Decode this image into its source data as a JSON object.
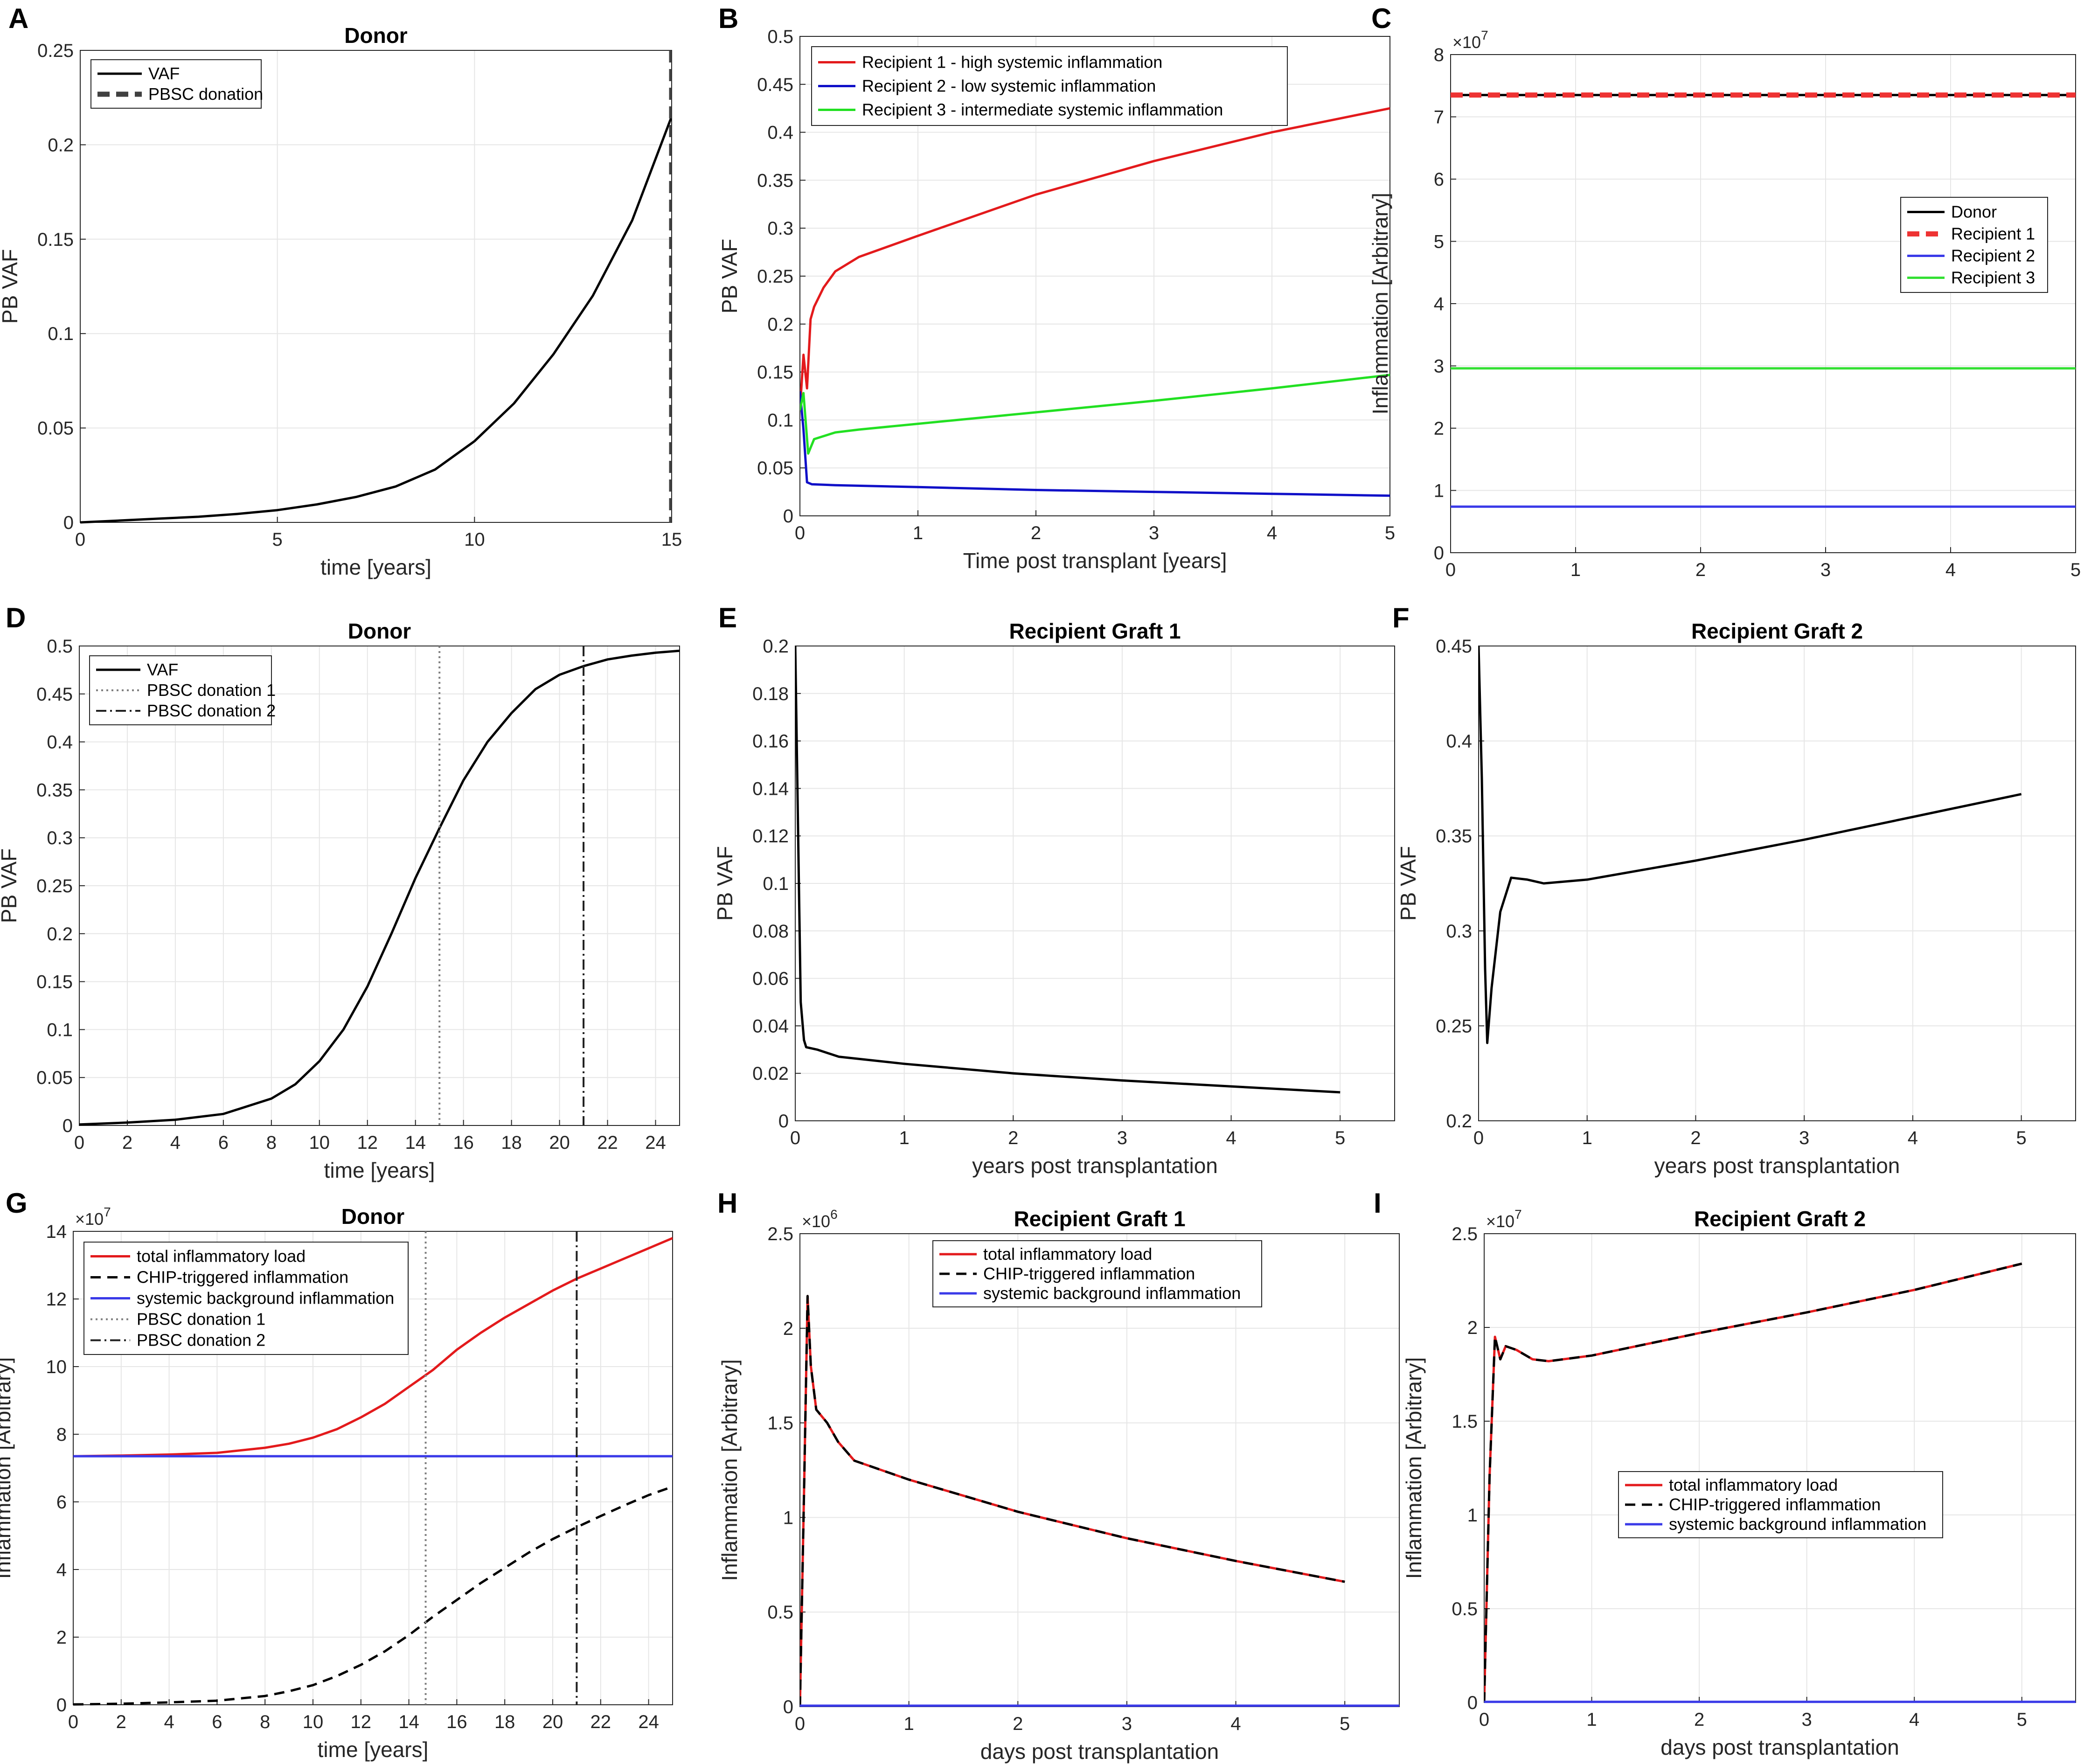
{
  "figure": {
    "panel_labels": [
      "A",
      "B",
      "C",
      "D",
      "E",
      "F",
      "G",
      "H",
      "I"
    ]
  },
  "chart_data": [
    {
      "panel": "A",
      "type": "line",
      "title": "Donor",
      "xlabel": "time [years]",
      "ylabel": "PB VAF",
      "xlim": [
        0,
        15
      ],
      "ylim": [
        0,
        0.25
      ],
      "xticks": [
        0,
        5,
        10,
        15
      ],
      "xtick_labels": [
        "0",
        "5",
        "10",
        "15"
      ],
      "yticks": [
        0,
        0.05,
        0.1,
        0.15,
        0.2,
        0.25
      ],
      "ytick_labels": [
        "0",
        "0.05",
        "0.1",
        "0.15",
        "0.2",
        "0.25"
      ],
      "legend_position": "top-left",
      "series": [
        {
          "name": "VAF",
          "color": "#000000",
          "dash": "solid",
          "x": [
            0,
            1,
            2,
            3,
            4,
            5,
            6,
            7,
            8,
            9,
            10,
            11,
            12,
            13,
            14,
            15
          ],
          "y": [
            0,
            0.001,
            0.002,
            0.003,
            0.0045,
            0.0065,
            0.0095,
            0.0135,
            0.019,
            0.028,
            0.043,
            0.063,
            0.089,
            0.12,
            0.16,
            0.215
          ]
        },
        {
          "name": "PBSC donation",
          "color": "#404040",
          "dash": "dashed-thick",
          "vline": 15
        }
      ]
    },
    {
      "panel": "B",
      "type": "line",
      "title": "",
      "xlabel": "Time post transplant [years]",
      "ylabel": "PB VAF",
      "xlim": [
        0,
        5
      ],
      "ylim": [
        0,
        0.5
      ],
      "xticks": [
        0,
        1,
        2,
        3,
        4,
        5
      ],
      "xtick_labels": [
        "0",
        "1",
        "2",
        "3",
        "4",
        "5"
      ],
      "yticks": [
        0,
        0.05,
        0.1,
        0.15,
        0.2,
        0.25,
        0.3,
        0.35,
        0.4,
        0.45,
        0.5
      ],
      "ytick_labels": [
        "0",
        "0.05",
        "0.1",
        "0.15",
        "0.2",
        "0.25",
        "0.3",
        "0.35",
        "0.4",
        "0.45",
        "0.5"
      ],
      "legend_position": "top-left",
      "series": [
        {
          "name": "Recipient 1 - high systemic inflammation",
          "color": "#e31a1c",
          "dash": "solid",
          "x": [
            0,
            0.03,
            0.06,
            0.09,
            0.12,
            0.2,
            0.3,
            0.5,
            1,
            2,
            3,
            4,
            5
          ],
          "y": [
            0.11,
            0.168,
            0.133,
            0.205,
            0.218,
            0.238,
            0.255,
            0.27,
            0.292,
            0.335,
            0.37,
            0.4,
            0.425
          ]
        },
        {
          "name": "Recipient 2 - low systemic inflammation",
          "color": "#1010c8",
          "dash": "solid",
          "x": [
            0,
            0.03,
            0.06,
            0.1,
            0.3,
            1,
            2,
            3,
            4,
            5
          ],
          "y": [
            0.13,
            0.09,
            0.035,
            0.033,
            0.032,
            0.03,
            0.027,
            0.025,
            0.023,
            0.021
          ]
        },
        {
          "name": "Recipient 3 - intermediate systemic inflammation",
          "color": "#22e022",
          "dash": "solid",
          "x": [
            0,
            0.03,
            0.07,
            0.12,
            0.3,
            0.5,
            1,
            2,
            3,
            4,
            5
          ],
          "y": [
            0.11,
            0.128,
            0.065,
            0.08,
            0.087,
            0.09,
            0.096,
            0.108,
            0.12,
            0.133,
            0.147
          ]
        }
      ]
    },
    {
      "panel": "C",
      "type": "line",
      "title": "",
      "xlabel": "",
      "ylabel": "Inflammation [Arbitrary]",
      "xlim": [
        0,
        5
      ],
      "ylim": [
        0,
        8
      ],
      "y_exponent": "×10",
      "y_exponent_power": "7",
      "xticks": [
        0,
        1,
        2,
        3,
        4,
        5
      ],
      "xtick_labels": [
        "0",
        "1",
        "2",
        "3",
        "4",
        "5"
      ],
      "yticks": [
        0,
        1,
        2,
        3,
        4,
        5,
        6,
        7,
        8
      ],
      "ytick_labels": [
        "0",
        "1",
        "2",
        "3",
        "4",
        "5",
        "6",
        "7",
        "8"
      ],
      "legend_position": "right",
      "series": [
        {
          "name": "Donor",
          "color": "#000000",
          "dash": "solid",
          "x": [
            0,
            5
          ],
          "y": [
            7.35,
            7.35
          ]
        },
        {
          "name": "Recipient 1",
          "color": "#ee3333",
          "dash": "dashed-thick",
          "x": [
            0,
            5
          ],
          "y": [
            7.35,
            7.35
          ]
        },
        {
          "name": "Recipient 2",
          "color": "#3a3ae8",
          "dash": "solid",
          "x": [
            0,
            5
          ],
          "y": [
            0.74,
            0.74
          ]
        },
        {
          "name": "Recipient 3",
          "color": "#33e033",
          "dash": "solid",
          "x": [
            0,
            5
          ],
          "y": [
            2.96,
            2.96
          ]
        }
      ]
    },
    {
      "panel": "D",
      "type": "line",
      "title": "Donor",
      "xlabel": "time [years]",
      "ylabel": "PB VAF",
      "xlim": [
        0,
        25
      ],
      "ylim": [
        0,
        0.5
      ],
      "xticks": [
        0,
        2,
        4,
        6,
        8,
        10,
        12,
        14,
        16,
        18,
        20,
        22,
        24
      ],
      "xtick_labels": [
        "0",
        "2",
        "4",
        "6",
        "8",
        "10",
        "12",
        "14",
        "16",
        "18",
        "20",
        "22",
        "24"
      ],
      "yticks": [
        0,
        0.05,
        0.1,
        0.15,
        0.2,
        0.25,
        0.3,
        0.35,
        0.4,
        0.45,
        0.5
      ],
      "ytick_labels": [
        "0",
        "0.05",
        "0.1",
        "0.15",
        "0.2",
        "0.25",
        "0.3",
        "0.35",
        "0.4",
        "0.45",
        "0.5"
      ],
      "legend_position": "top-left",
      "series": [
        {
          "name": "VAF",
          "color": "#000000",
          "dash": "solid",
          "x": [
            0,
            2,
            4,
            6,
            8,
            9,
            10,
            11,
            12,
            13,
            14,
            15,
            16,
            17,
            18,
            19,
            20,
            21,
            22,
            23,
            24,
            25
          ],
          "y": [
            0.001,
            0.003,
            0.006,
            0.012,
            0.028,
            0.043,
            0.067,
            0.1,
            0.145,
            0.2,
            0.258,
            0.31,
            0.36,
            0.4,
            0.43,
            0.455,
            0.47,
            0.479,
            0.486,
            0.49,
            0.493,
            0.495
          ]
        },
        {
          "name": "PBSC donation 1",
          "color": "#808080",
          "dash": "dotted",
          "vline": 15
        },
        {
          "name": "PBSC donation 2",
          "color": "#202020",
          "dash": "dashdot",
          "vline": 21
        }
      ]
    },
    {
      "panel": "E",
      "type": "line",
      "title": "Recipient Graft 1",
      "xlabel": "years post transplantation",
      "ylabel": "PB VAF",
      "xlim": [
        0,
        5.5
      ],
      "ylim": [
        0,
        0.2
      ],
      "xticks": [
        0,
        1,
        2,
        3,
        4,
        5
      ],
      "xtick_labels": [
        "0",
        "1",
        "2",
        "3",
        "4",
        "5"
      ],
      "yticks": [
        0,
        0.02,
        0.04,
        0.06,
        0.08,
        0.1,
        0.12,
        0.14,
        0.16,
        0.18,
        0.2
      ],
      "ytick_labels": [
        "0",
        "0.02",
        "0.04",
        "0.06",
        "0.08",
        "0.1",
        "0.12",
        "0.14",
        "0.16",
        "0.18",
        "0.2"
      ],
      "series": [
        {
          "name": "VAF",
          "color": "#000000",
          "dash": "solid",
          "x": [
            0,
            0.03,
            0.05,
            0.08,
            0.1,
            0.2,
            0.4,
            1,
            2,
            3,
            4,
            5
          ],
          "y": [
            0.2,
            0.11,
            0.05,
            0.034,
            0.031,
            0.03,
            0.027,
            0.024,
            0.02,
            0.017,
            0.0145,
            0.012
          ]
        }
      ]
    },
    {
      "panel": "F",
      "type": "line",
      "title": "Recipient Graft 2",
      "xlabel": "years post transplantation",
      "ylabel": "PB VAF",
      "xlim": [
        0,
        5.5
      ],
      "ylim": [
        0.2,
        0.45
      ],
      "xticks": [
        0,
        1,
        2,
        3,
        4,
        5
      ],
      "xtick_labels": [
        "0",
        "1",
        "2",
        "3",
        "4",
        "5"
      ],
      "yticks": [
        0.2,
        0.25,
        0.3,
        0.35,
        0.4,
        0.45
      ],
      "ytick_labels": [
        "0.2",
        "0.25",
        "0.3",
        "0.35",
        "0.4",
        "0.45"
      ],
      "series": [
        {
          "name": "VAF",
          "color": "#000000",
          "dash": "solid",
          "x": [
            0,
            0.03,
            0.06,
            0.08,
            0.12,
            0.2,
            0.3,
            0.45,
            0.6,
            1,
            2,
            3,
            4,
            5
          ],
          "y": [
            0.45,
            0.38,
            0.28,
            0.241,
            0.27,
            0.31,
            0.328,
            0.327,
            0.325,
            0.327,
            0.337,
            0.348,
            0.36,
            0.372
          ]
        }
      ]
    },
    {
      "panel": "G",
      "type": "line",
      "title": "Donor",
      "xlabel": "time [years]",
      "ylabel": "Inflammation [Arbitrary]",
      "xlim": [
        0,
        25
      ],
      "ylim": [
        0,
        14
      ],
      "y_exponent": "×10",
      "y_exponent_power": "7",
      "xticks": [
        0,
        2,
        4,
        6,
        8,
        10,
        12,
        14,
        16,
        18,
        20,
        22,
        24
      ],
      "xtick_labels": [
        "0",
        "2",
        "4",
        "6",
        "8",
        "10",
        "12",
        "14",
        "16",
        "18",
        "20",
        "22",
        "24"
      ],
      "yticks": [
        0,
        2,
        4,
        6,
        8,
        10,
        12,
        14
      ],
      "ytick_labels": [
        "0",
        "2",
        "4",
        "6",
        "8",
        "10",
        "12",
        "14"
      ],
      "legend_position": "top-left",
      "series": [
        {
          "name": "total inflammatory load",
          "color": "#e31a1c",
          "dash": "solid",
          "x": [
            0,
            2,
            4,
            6,
            8,
            9,
            10,
            11,
            12,
            13,
            14,
            15,
            16,
            17,
            18,
            19,
            20,
            21,
            22,
            23,
            24,
            25
          ],
          "y": [
            7.35,
            7.37,
            7.4,
            7.45,
            7.6,
            7.72,
            7.9,
            8.15,
            8.5,
            8.9,
            9.4,
            9.9,
            10.5,
            11.0,
            11.45,
            11.85,
            12.25,
            12.6,
            12.9,
            13.2,
            13.5,
            13.8
          ]
        },
        {
          "name": "CHIP-triggered inflammation",
          "color": "#000000",
          "dash": "dashed",
          "x": [
            0,
            2,
            4,
            6,
            8,
            9,
            10,
            11,
            12,
            13,
            14,
            15,
            16,
            17,
            18,
            19,
            20,
            21,
            22,
            23,
            24,
            25
          ],
          "y": [
            0.01,
            0.03,
            0.07,
            0.12,
            0.26,
            0.4,
            0.58,
            0.85,
            1.18,
            1.58,
            2.06,
            2.6,
            3.1,
            3.6,
            4.05,
            4.5,
            4.9,
            5.25,
            5.58,
            5.9,
            6.2,
            6.45
          ]
        },
        {
          "name": "systemic background inflammation",
          "color": "#3a3ae8",
          "dash": "solid",
          "x": [
            0,
            25
          ],
          "y": [
            7.35,
            7.35
          ]
        },
        {
          "name": "PBSC donation 1",
          "color": "#808080",
          "dash": "dotted",
          "vline": 14.7
        },
        {
          "name": "PBSC donation 2",
          "color": "#202020",
          "dash": "dashdot",
          "vline": 21
        }
      ]
    },
    {
      "panel": "H",
      "type": "line",
      "title": "Recipient Graft 1",
      "xlabel": "days post transplantation",
      "ylabel": "Inflammation [Arbitrary]",
      "xlim": [
        0,
        5.5
      ],
      "ylim": [
        0,
        2.5
      ],
      "y_exponent": "×10",
      "y_exponent_power": "6",
      "xticks": [
        0,
        1,
        2,
        3,
        4,
        5
      ],
      "xtick_labels": [
        "0",
        "1",
        "2",
        "3",
        "4",
        "5"
      ],
      "yticks": [
        0,
        0.5,
        1,
        1.5,
        2,
        2.5
      ],
      "ytick_labels": [
        "0",
        "0.5",
        "1",
        "1.5",
        "2",
        "2.5"
      ],
      "legend_position": "top-center",
      "series": [
        {
          "name": "total inflammatory load",
          "color": "#e31a1c",
          "dash": "solid",
          "x": [
            0,
            0.04,
            0.07,
            0.1,
            0.15,
            0.25,
            0.35,
            0.5,
            1,
            2,
            3,
            4,
            5
          ],
          "y": [
            0,
            1.2,
            2.17,
            1.8,
            1.57,
            1.5,
            1.4,
            1.3,
            1.2,
            1.03,
            0.89,
            0.77,
            0.66
          ]
        },
        {
          "name": "CHIP-triggered inflammation",
          "color": "#000000",
          "dash": "dashed",
          "x": [
            0,
            0.04,
            0.07,
            0.1,
            0.15,
            0.25,
            0.35,
            0.5,
            1,
            2,
            3,
            4,
            5
          ],
          "y": [
            0,
            1.2,
            2.17,
            1.8,
            1.57,
            1.5,
            1.4,
            1.3,
            1.2,
            1.03,
            0.89,
            0.77,
            0.66
          ]
        },
        {
          "name": "systemic background inflammation",
          "color": "#3a3ae8",
          "dash": "solid",
          "x": [
            0,
            5.5
          ],
          "y": [
            0.005,
            0.005
          ]
        }
      ]
    },
    {
      "panel": "I",
      "type": "line",
      "title": "Recipient Graft 2",
      "xlabel": "days post transplantation",
      "ylabel": "Inflammation [Arbitrary]",
      "xlim": [
        0,
        5.5
      ],
      "ylim": [
        0,
        2.5
      ],
      "y_exponent": "×10",
      "y_exponent_power": "7",
      "xticks": [
        0,
        1,
        2,
        3,
        4,
        5
      ],
      "xtick_labels": [
        "0",
        "1",
        "2",
        "3",
        "4",
        "5"
      ],
      "yticks": [
        0,
        0.5,
        1,
        1.5,
        2,
        2.5
      ],
      "ytick_labels": [
        "0",
        "0.5",
        "1",
        "1.5",
        "2",
        "2.5"
      ],
      "legend_position": "center-right",
      "series": [
        {
          "name": "total inflammatory load",
          "color": "#e31a1c",
          "dash": "solid",
          "x": [
            0,
            0.05,
            0.1,
            0.15,
            0.2,
            0.3,
            0.45,
            0.6,
            1,
            2,
            3,
            4,
            5
          ],
          "y": [
            0,
            1.2,
            1.95,
            1.83,
            1.9,
            1.88,
            1.83,
            1.82,
            1.85,
            1.97,
            2.08,
            2.2,
            2.34
          ]
        },
        {
          "name": "CHIP-triggered inflammation",
          "color": "#000000",
          "dash": "dashed",
          "x": [
            0,
            0.05,
            0.1,
            0.15,
            0.2,
            0.3,
            0.45,
            0.6,
            1,
            2,
            3,
            4,
            5
          ],
          "y": [
            0,
            1.2,
            1.95,
            1.83,
            1.9,
            1.88,
            1.83,
            1.82,
            1.85,
            1.97,
            2.08,
            2.2,
            2.34
          ]
        },
        {
          "name": "systemic background inflammation",
          "color": "#3a3ae8",
          "dash": "solid",
          "x": [
            0,
            5.5
          ],
          "y": [
            0.003,
            0.003
          ]
        }
      ]
    }
  ]
}
